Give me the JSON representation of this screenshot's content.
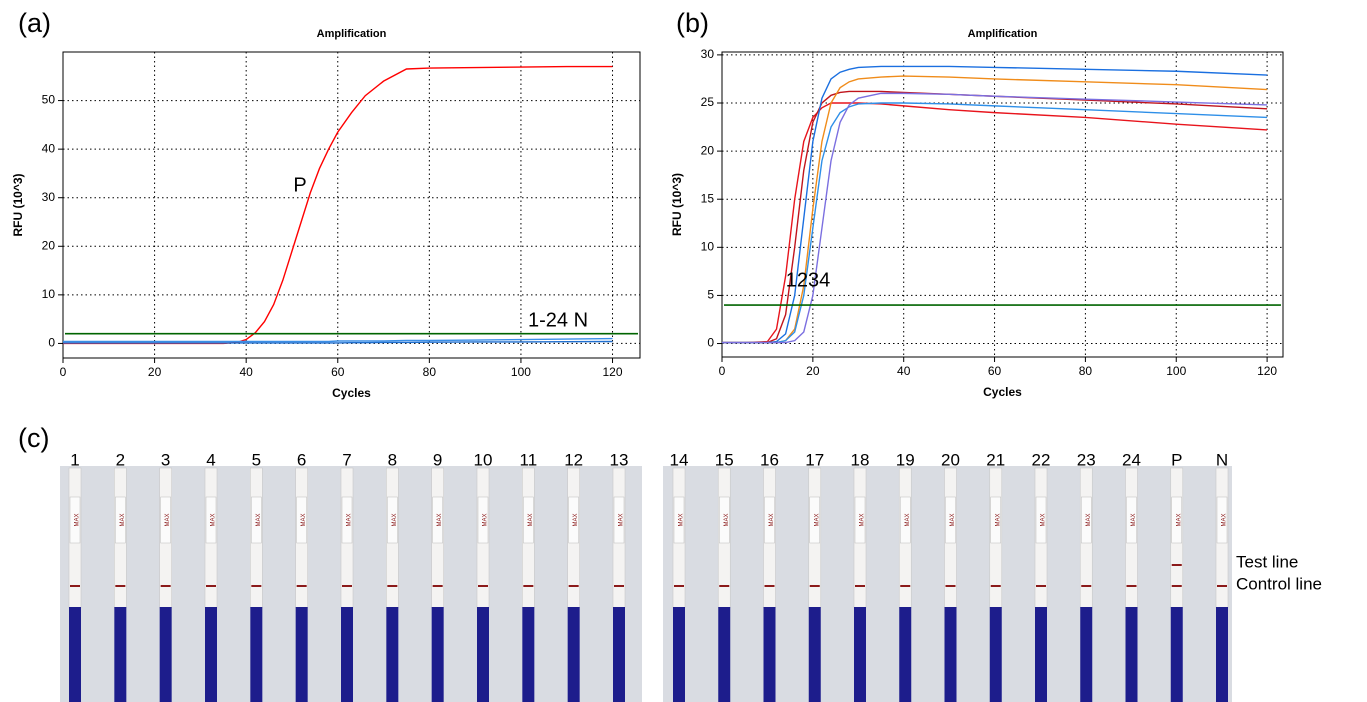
{
  "chart_data": [
    {
      "type": "line",
      "panel": "(a)",
      "title": "Amplification",
      "xlabel": "Cycles",
      "ylabel": "RFU (10^3)",
      "x": [
        0,
        10,
        20,
        30,
        35,
        38,
        40,
        42,
        44,
        46,
        48,
        50,
        52,
        54,
        56,
        58,
        60,
        63,
        66,
        70,
        75,
        80,
        90,
        100,
        110,
        120
      ],
      "series": [
        {
          "name": "P",
          "color": "#ff0000",
          "values": [
            0,
            0,
            0,
            0,
            0,
            0.2,
            0.8,
            2.2,
            4.5,
            8,
            13,
            19,
            25,
            31,
            36,
            40,
            43.5,
            47.5,
            51,
            54,
            56.5,
            56.7,
            56.8,
            56.9,
            57,
            57
          ]
        },
        {
          "name": "1-24 N",
          "color": "#3a8ee6",
          "values": [
            0.4,
            0.4,
            0.4,
            0.4,
            0.4,
            0.4,
            0.4,
            0.4,
            0.4,
            0.4,
            0.4,
            0.4,
            0.4,
            0.4,
            0.4,
            0.4,
            0.5,
            0.5,
            0.5,
            0.5,
            0.6,
            0.6,
            0.7,
            0.8,
            0.9,
            1.0
          ]
        },
        {
          "color": "#1f6fd0",
          "values": [
            0.1,
            0.1,
            0.1,
            0.1,
            0.1,
            0.1,
            0.1,
            0.1,
            0.1,
            0.1,
            0.1,
            0.1,
            0.1,
            0.1,
            0.1,
            0.1,
            0.1,
            0.15,
            0.15,
            0.2,
            0.2,
            0.25,
            0.3,
            0.3,
            0.35,
            0.4
          ]
        }
      ],
      "threshold": {
        "value": 2,
        "color": "#006400"
      },
      "xlim": [
        0,
        126
      ],
      "ylim": [
        -3,
        60
      ],
      "xticks": [
        0,
        20,
        40,
        60,
        80,
        100,
        120
      ],
      "yticks": [
        0,
        10,
        20,
        30,
        40,
        50
      ],
      "grid": true
    },
    {
      "type": "line",
      "panel": "(b)",
      "title": "Amplification",
      "xlabel": "Cycles",
      "ylabel": "RFU (10^3)",
      "annotation": "1234",
      "x": [
        0,
        5,
        10,
        12,
        14,
        16,
        18,
        20,
        22,
        24,
        26,
        28,
        30,
        35,
        40,
        50,
        60,
        80,
        100,
        120
      ],
      "series": [
        {
          "color": "#e8141c",
          "values": [
            0.1,
            0.1,
            0.2,
            1.5,
            7,
            15,
            21,
            23.5,
            24.5,
            25,
            25,
            25,
            25,
            24.9,
            24.7,
            24.3,
            24,
            23.5,
            22.8,
            22.2
          ]
        },
        {
          "color": "#c0141c",
          "values": [
            0.1,
            0.1,
            0.1,
            0.5,
            3,
            10,
            18,
            23,
            25,
            25.8,
            26.1,
            26.2,
            26.2,
            26.2,
            26.1,
            25.9,
            25.7,
            25.3,
            24.9,
            24.4
          ]
        },
        {
          "color": "#1a6fe0",
          "values": [
            0.1,
            0.1,
            0.1,
            0.2,
            1,
            5,
            13,
            21,
            25.5,
            27.5,
            28.2,
            28.5,
            28.7,
            28.8,
            28.8,
            28.8,
            28.7,
            28.5,
            28.3,
            27.9
          ]
        },
        {
          "color": "#f08c1a",
          "values": [
            0.1,
            0.1,
            0.1,
            0.1,
            0.3,
            1.5,
            6,
            14,
            21,
            25,
            26.6,
            27.2,
            27.5,
            27.7,
            27.8,
            27.7,
            27.5,
            27.2,
            26.9,
            26.4
          ]
        },
        {
          "color": "#2e8fe8",
          "values": [
            0.1,
            0.1,
            0.1,
            0.1,
            0.3,
            1.2,
            5,
            12,
            19,
            22.5,
            24,
            24.6,
            24.9,
            25,
            25,
            24.9,
            24.7,
            24.3,
            23.9,
            23.5
          ]
        },
        {
          "color": "#7b6fe0",
          "values": [
            0.1,
            0.1,
            0.1,
            0.1,
            0.1,
            0.3,
            1.2,
            5,
            12,
            19,
            23,
            24.8,
            25.5,
            26,
            26,
            25.9,
            25.7,
            25.4,
            25.1,
            24.8
          ]
        }
      ],
      "threshold": {
        "value": 4,
        "color": "#006400"
      },
      "xlim": [
        0,
        123.5
      ],
      "ylim": [
        -1.4,
        30.3
      ],
      "xticks": [
        0,
        20,
        40,
        60,
        80,
        100,
        120
      ],
      "yticks": [
        0,
        5,
        10,
        15,
        20,
        25,
        30
      ],
      "grid": true
    }
  ],
  "panel_c": {
    "label": "(c)",
    "strip_text": "MAX",
    "test_line": "Test line",
    "control_line": "Control line",
    "groups": [
      {
        "strips": [
          {
            "label": "1",
            "test_band": false
          },
          {
            "label": "2",
            "test_band": false
          },
          {
            "label": "3",
            "test_band": false
          },
          {
            "label": "4",
            "test_band": false
          },
          {
            "label": "5",
            "test_band": false
          },
          {
            "label": "6",
            "test_band": false
          },
          {
            "label": "7",
            "test_band": false
          },
          {
            "label": "8",
            "test_band": false
          },
          {
            "label": "9",
            "test_band": false
          },
          {
            "label": "10",
            "test_band": false
          },
          {
            "label": "11",
            "test_band": false
          },
          {
            "label": "12",
            "test_band": false
          },
          {
            "label": "13",
            "test_band": false
          }
        ]
      },
      {
        "strips": [
          {
            "label": "14",
            "test_band": false
          },
          {
            "label": "15",
            "test_band": false
          },
          {
            "label": "16",
            "test_band": false
          },
          {
            "label": "17",
            "test_band": false
          },
          {
            "label": "18",
            "test_band": false
          },
          {
            "label": "19",
            "test_band": false
          },
          {
            "label": "20",
            "test_band": false
          },
          {
            "label": "21",
            "test_band": false
          },
          {
            "label": "22",
            "test_band": false
          },
          {
            "label": "23",
            "test_band": false
          },
          {
            "label": "24",
            "test_band": false
          },
          {
            "label": "P",
            "test_band": true
          },
          {
            "label": "N",
            "test_band": false
          }
        ]
      }
    ]
  }
}
